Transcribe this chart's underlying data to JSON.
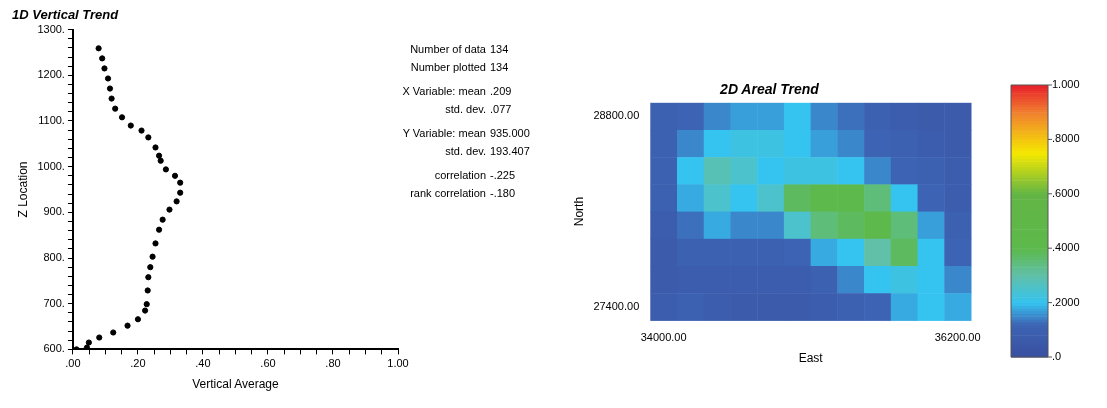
{
  "chart_data": [
    {
      "type": "scatter",
      "title": "1D Vertical Trend",
      "xlabel": "Vertical Average",
      "ylabel": "Z Location",
      "marker": "circle",
      "x": [
        0.079,
        0.09,
        0.097,
        0.108,
        0.114,
        0.119,
        0.13,
        0.151,
        0.178,
        0.211,
        0.232,
        0.254,
        0.265,
        0.27,
        0.286,
        0.314,
        0.33,
        0.33,
        0.319,
        0.297,
        0.276,
        0.265,
        0.254,
        0.245,
        0.238,
        0.232,
        0.23,
        0.227,
        0.222,
        0.2,
        0.168,
        0.124,
        0.081,
        0.049,
        0.043,
        0.011
      ],
      "series": [
        {
          "color": "#000000",
          "values": [
            1259,
            1237,
            1215,
            1193,
            1171,
            1149,
            1127,
            1108,
            1090,
            1079,
            1064,
            1042,
            1024,
            1013,
            994,
            980,
            965,
            943,
            924,
            906,
            884,
            862,
            832,
            803,
            780,
            758,
            729,
            699,
            685,
            666,
            652,
            637,
            626,
            615,
            604,
            600
          ]
        }
      ],
      "xlim": [
        0,
        1
      ],
      "xticks": [
        {
          "value": 0,
          "label": ".00"
        },
        {
          "value": 0.05,
          "label": null
        },
        {
          "value": 0.1,
          "label": null
        },
        {
          "value": 0.15,
          "label": null
        },
        {
          "value": 0.2,
          "label": ".20"
        },
        {
          "value": 0.25,
          "label": null
        },
        {
          "value": 0.3,
          "label": null
        },
        {
          "value": 0.35,
          "label": null
        },
        {
          "value": 0.4,
          "label": ".40"
        },
        {
          "value": 0.45,
          "label": null
        },
        {
          "value": 0.5,
          "label": null
        },
        {
          "value": 0.55,
          "label": null
        },
        {
          "value": 0.6,
          "label": ".60"
        },
        {
          "value": 0.65,
          "label": null
        },
        {
          "value": 0.7,
          "label": null
        },
        {
          "value": 0.75,
          "label": null
        },
        {
          "value": 0.8,
          "label": ".80"
        },
        {
          "value": 0.85,
          "label": null
        },
        {
          "value": 0.9,
          "label": null
        },
        {
          "value": 0.95,
          "label": null
        },
        {
          "value": 1,
          "label": "1.00"
        }
      ],
      "ylim": [
        600,
        1300
      ],
      "yticks": [
        {
          "value": 600,
          "label": "600."
        },
        {
          "value": 620,
          "label": null
        },
        {
          "value": 640,
          "label": null
        },
        {
          "value": 660,
          "label": null
        },
        {
          "value": 680,
          "label": null
        },
        {
          "value": 700,
          "label": "700."
        },
        {
          "value": 720,
          "label": null
        },
        {
          "value": 740,
          "label": null
        },
        {
          "value": 760,
          "label": null
        },
        {
          "value": 780,
          "label": null
        },
        {
          "value": 800,
          "label": "800."
        },
        {
          "value": 820,
          "label": null
        },
        {
          "value": 840,
          "label": null
        },
        {
          "value": 860,
          "label": null
        },
        {
          "value": 880,
          "label": null
        },
        {
          "value": 900,
          "label": "900."
        },
        {
          "value": 920,
          "label": null
        },
        {
          "value": 940,
          "label": null
        },
        {
          "value": 960,
          "label": null
        },
        {
          "value": 980,
          "label": null
        },
        {
          "value": 1000,
          "label": "1000."
        },
        {
          "value": 1020,
          "label": null
        },
        {
          "value": 1040,
          "label": null
        },
        {
          "value": 1060,
          "label": null
        },
        {
          "value": 1080,
          "label": null
        },
        {
          "value": 1100,
          "label": "1100."
        },
        {
          "value": 1120,
          "label": null
        },
        {
          "value": 1140,
          "label": null
        },
        {
          "value": 1160,
          "label": null
        },
        {
          "value": 1180,
          "label": null
        },
        {
          "value": 1200,
          "label": "1200."
        },
        {
          "value": 1220,
          "label": null
        },
        {
          "value": 1240,
          "label": null
        },
        {
          "value": 1260,
          "label": null
        },
        {
          "value": 1280,
          "label": null
        },
        {
          "value": 1300,
          "label": "1300."
        }
      ],
      "annotations": [
        "Number of data 134",
        "Number plotted 134",
        "X Variable: mean .209",
        "std. dev. .077",
        "Y Variable: mean 935.000",
        "std. dev. 193.407",
        "correlation -.225",
        "rank correlation -.180"
      ]
    },
    {
      "type": "heatmap",
      "title": "2D Areal Trend",
      "xlabel": "East",
      "ylabel": "North",
      "categories": [
        "34000.00",
        null,
        null,
        null,
        null,
        null,
        null,
        null,
        null,
        null,
        null,
        "36200.00"
      ],
      "y_categories": [
        "28800.00",
        null,
        null,
        null,
        null,
        null,
        null,
        "27400.00"
      ],
      "cells": [
        [
          0.1,
          0.12,
          0.15,
          0.17,
          0.17,
          0.2,
          0.15,
          0.13,
          0.1,
          0.08,
          0.07,
          0.07
        ],
        [
          0.1,
          0.15,
          0.2,
          0.22,
          0.22,
          0.2,
          0.17,
          0.15,
          0.12,
          0.1,
          0.08,
          0.07
        ],
        [
          0.1,
          0.2,
          0.28,
          0.25,
          0.2,
          0.22,
          0.22,
          0.2,
          0.15,
          0.12,
          0.1,
          0.08
        ],
        [
          0.1,
          0.18,
          0.25,
          0.2,
          0.25,
          0.38,
          0.4,
          0.4,
          0.35,
          0.2,
          0.12,
          0.08
        ],
        [
          0.08,
          0.13,
          0.18,
          0.15,
          0.15,
          0.25,
          0.35,
          0.38,
          0.4,
          0.35,
          0.17,
          0.1
        ],
        [
          0.07,
          0.1,
          0.1,
          0.1,
          0.1,
          0.12,
          0.18,
          0.2,
          0.3,
          0.38,
          0.2,
          0.12
        ],
        [
          0.07,
          0.08,
          0.08,
          0.08,
          0.08,
          0.08,
          0.1,
          0.15,
          0.2,
          0.22,
          0.2,
          0.15
        ],
        [
          0.08,
          0.1,
          0.08,
          0.07,
          0.07,
          0.07,
          0.08,
          0.1,
          0.12,
          0.18,
          0.2,
          0.18
        ]
      ],
      "clim": [
        0,
        1
      ],
      "cticks": [
        {
          "value": 0,
          "label": ".0"
        },
        {
          "value": 0.2,
          "label": ".2000"
        },
        {
          "value": 0.4,
          "label": ".4000"
        },
        {
          "value": 0.6,
          "label": ".6000"
        },
        {
          "value": 0.8,
          "label": ".8000"
        },
        {
          "value": 1,
          "label": "1.000"
        }
      ]
    }
  ]
}
